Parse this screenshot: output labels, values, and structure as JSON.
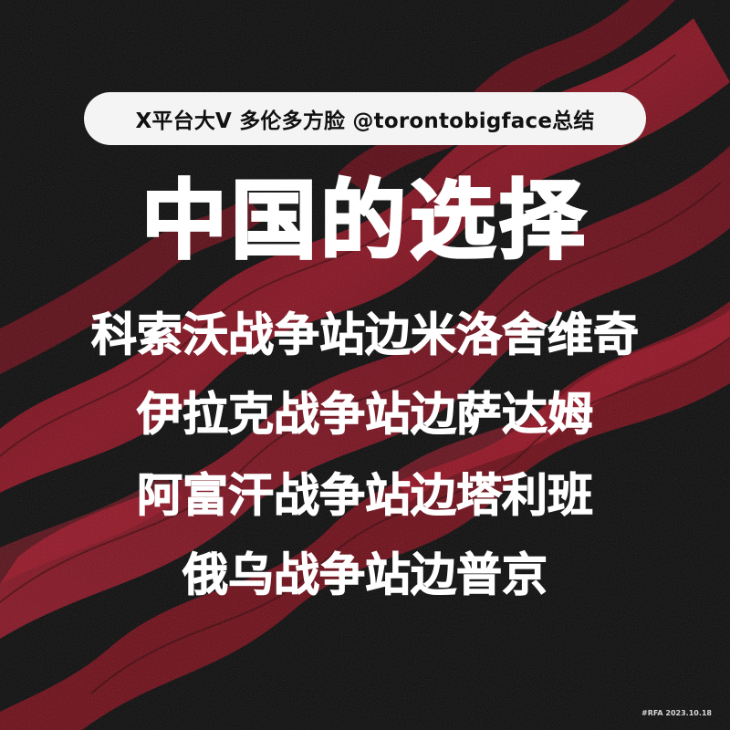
{
  "header": {
    "pill_text": "X平台大V 多伦多方脸 @torontobigface总结"
  },
  "main": {
    "title": "中国的选择",
    "lines": [
      "科索沃战争站边米洛舍维奇",
      "伊拉克战争站边萨达姆",
      "阿富汗战争站边塔利班",
      "俄乌战争站边普京"
    ]
  },
  "footer": {
    "tag": "#RFA 2023.10.18"
  },
  "colors": {
    "background": "#0b0b0b",
    "accent_red": "#8e0f1e",
    "text": "#ffffff",
    "pill": "#f4f4f4"
  }
}
